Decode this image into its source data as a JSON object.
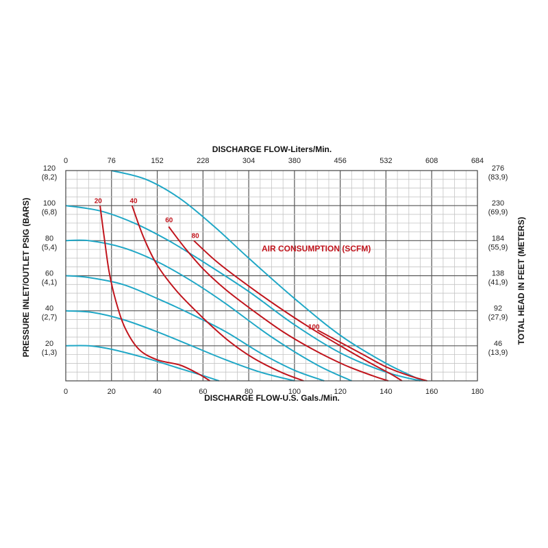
{
  "chart_data": {
    "type": "line",
    "bottom_axis": {
      "label": "DISCHARGE FLOW-U.S. Gals./Min.",
      "range": [
        0,
        180
      ],
      "ticks": [
        "0",
        "20",
        "40",
        "60",
        "80",
        "100",
        "120",
        "140",
        "160",
        "180"
      ]
    },
    "top_axis": {
      "label": "DISCHARGE FLOW-Liters/Min.",
      "ticks": [
        "0",
        "76",
        "152",
        "228",
        "304",
        "380",
        "456",
        "532",
        "608",
        "684"
      ]
    },
    "left_axis": {
      "label": "PRESSURE INLET/OUTLET PSIG (BARS)",
      "range": [
        0,
        120
      ],
      "ticks": [
        {
          "value": 120,
          "main": "120",
          "sub": "(8,2)"
        },
        {
          "value": 100,
          "main": "100",
          "sub": "(6,8)"
        },
        {
          "value": 80,
          "main": "80",
          "sub": "(5,4)"
        },
        {
          "value": 60,
          "main": "60",
          "sub": "(4,1)"
        },
        {
          "value": 40,
          "main": "40",
          "sub": "(2,7)"
        },
        {
          "value": 20,
          "main": "20",
          "sub": "(1,3)"
        }
      ]
    },
    "right_axis": {
      "label": "TOTAL HEAD IN FEET (METERS)",
      "ticks": [
        {
          "value": 120,
          "main": "276",
          "sub": "(83,9)"
        },
        {
          "value": 100,
          "main": "230",
          "sub": "(69,9)"
        },
        {
          "value": 80,
          "main": "184",
          "sub": "(55,9)"
        },
        {
          "value": 60,
          "main": "138",
          "sub": "(41,9)"
        },
        {
          "value": 40,
          "main": "92",
          "sub": "(27,9)"
        },
        {
          "value": 20,
          "main": "46",
          "sub": "(13,9)"
        }
      ]
    },
    "grid": true,
    "annotation": "AIR CONSUMPTION (SCFM)",
    "colors": {
      "pressure": "#1fa7c6",
      "air": "#c0141c"
    },
    "pressure_curves": [
      {
        "x": [
          20,
          35,
          50,
          65,
          80,
          100,
          120,
          140,
          156
        ],
        "y": [
          120,
          115,
          104,
          88,
          70,
          47,
          26,
          10,
          0
        ]
      },
      {
        "x": [
          0,
          15,
          30,
          45,
          60,
          80,
          100,
          120,
          140,
          155
        ],
        "y": [
          100,
          97,
          90,
          80,
          68,
          51,
          32,
          16,
          5,
          0
        ]
      },
      {
        "x": [
          0,
          10,
          25,
          40,
          55,
          70,
          90,
          110,
          125
        ],
        "y": [
          80,
          80,
          76,
          68,
          57,
          44,
          25,
          9,
          0
        ]
      },
      {
        "x": [
          0,
          10,
          25,
          40,
          55,
          70,
          85,
          100,
          113
        ],
        "y": [
          60,
          59,
          55,
          47,
          38,
          28,
          16,
          6,
          0
        ]
      },
      {
        "x": [
          0,
          12,
          25,
          40,
          55,
          70,
          85,
          100
        ],
        "y": [
          40,
          39,
          35,
          28,
          20,
          12,
          5,
          0
        ]
      },
      {
        "x": [
          0,
          10,
          20,
          35,
          50,
          60,
          67
        ],
        "y": [
          20,
          20,
          18,
          13,
          7,
          3,
          0
        ]
      }
    ],
    "air_curves": [
      {
        "label": "20",
        "label_at": [
          12.5,
          101.5
        ],
        "x": [
          15,
          17,
          19,
          22,
          26,
          32,
          40,
          50,
          58,
          63
        ],
        "y": [
          100,
          80,
          62,
          45,
          30,
          18,
          12,
          9,
          4,
          0
        ]
      },
      {
        "label": "40",
        "label_at": [
          28,
          101.5
        ],
        "x": [
          29,
          34,
          40,
          48,
          56,
          64,
          72,
          82,
          94,
          104
        ],
        "y": [
          100,
          82,
          66,
          52,
          41,
          31,
          22,
          13,
          5,
          0
        ]
      },
      {
        "label": "60",
        "label_at": [
          43.5,
          90.5
        ],
        "x": [
          45,
          52,
          60,
          70,
          82,
          95,
          108,
          122,
          134,
          141
        ],
        "y": [
          88,
          76,
          64,
          52,
          40,
          28,
          18,
          9,
          3,
          0
        ]
      },
      {
        "label": "80",
        "label_at": [
          55,
          81.5
        ],
        "x": [
          56,
          66,
          78,
          92,
          106,
          120,
          132,
          142,
          147
        ],
        "y": [
          80,
          68,
          56,
          43,
          31,
          20,
          11,
          4,
          0
        ]
      },
      {
        "label": "100",
        "label_at": [
          106,
          29.5
        ],
        "x": [
          110,
          120,
          130,
          140,
          150,
          158
        ],
        "y": [
          29,
          22,
          15,
          8,
          3,
          0
        ]
      }
    ]
  }
}
